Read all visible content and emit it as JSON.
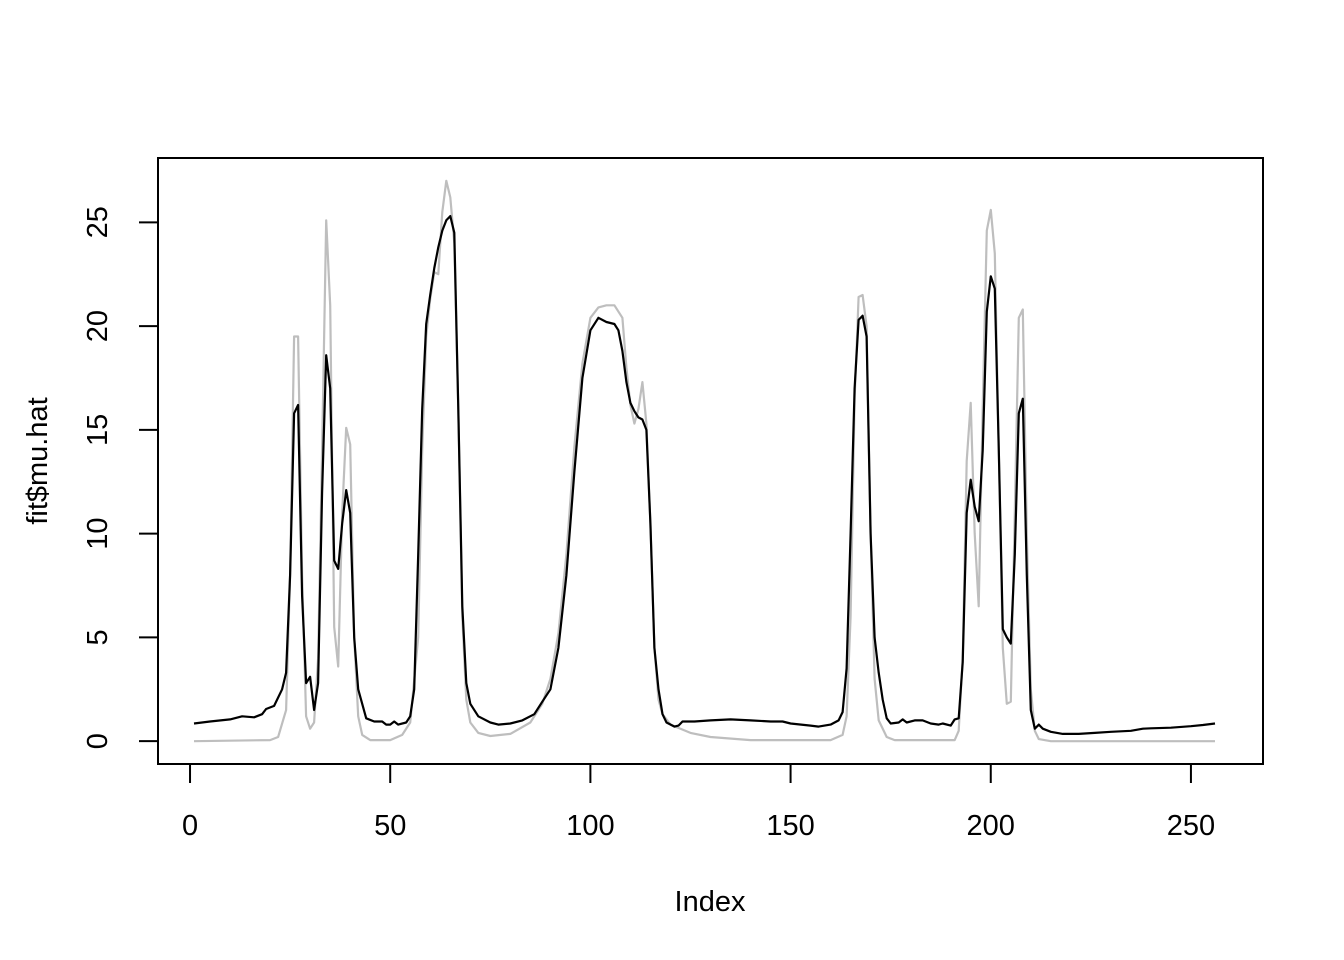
{
  "chart_data": {
    "type": "line",
    "title": "",
    "xlabel": "Index",
    "ylabel": "fit$mu.hat",
    "xlim": [
      -8,
      268
    ],
    "ylim": [
      -1.1,
      28.1
    ],
    "x_ticks": [
      0,
      50,
      100,
      150,
      200,
      250
    ],
    "y_ticks": [
      0,
      5,
      10,
      15,
      20,
      25
    ],
    "x_tick_labels": [
      "0",
      "50",
      "100",
      "150",
      "200",
      "250"
    ],
    "y_tick_labels": [
      "0",
      "5",
      "10",
      "15",
      "20",
      "25"
    ],
    "grid": false,
    "series": [
      {
        "role": "true-mean",
        "color": "#bebebe",
        "points": [
          [
            1,
            0
          ],
          [
            20,
            0.05
          ],
          [
            22,
            0.2
          ],
          [
            24,
            1.5
          ],
          [
            25,
            8
          ],
          [
            26,
            19.5
          ],
          [
            27,
            19.5
          ],
          [
            28,
            8
          ],
          [
            29,
            1.2
          ],
          [
            30,
            0.6
          ],
          [
            31,
            0.9
          ],
          [
            32,
            4
          ],
          [
            33,
            14
          ],
          [
            34,
            25.1
          ],
          [
            35,
            21
          ],
          [
            36,
            5.5
          ],
          [
            37,
            3.6
          ],
          [
            38,
            11
          ],
          [
            39,
            15.1
          ],
          [
            40,
            14.3
          ],
          [
            41,
            5
          ],
          [
            42,
            1.2
          ],
          [
            43,
            0.3
          ],
          [
            45,
            0.05
          ],
          [
            50,
            0.05
          ],
          [
            53,
            0.3
          ],
          [
            55,
            0.9
          ],
          [
            57,
            5
          ],
          [
            58,
            14
          ],
          [
            59,
            19.5
          ],
          [
            60,
            21.3
          ],
          [
            61,
            22.6
          ],
          [
            62,
            22.5
          ],
          [
            63,
            25.5
          ],
          [
            64,
            27
          ],
          [
            65,
            26.2
          ],
          [
            66,
            24
          ],
          [
            67,
            16
          ],
          [
            68,
            6
          ],
          [
            69,
            2
          ],
          [
            70,
            0.9
          ],
          [
            72,
            0.4
          ],
          [
            75,
            0.25
          ],
          [
            80,
            0.35
          ],
          [
            85,
            0.9
          ],
          [
            88,
            1.8
          ],
          [
            90,
            3
          ],
          [
            92,
            5.2
          ],
          [
            94,
            9
          ],
          [
            96,
            14.2
          ],
          [
            98,
            18.2
          ],
          [
            100,
            20.4
          ],
          [
            102,
            20.9
          ],
          [
            104,
            21
          ],
          [
            106,
            21
          ],
          [
            108,
            20.4
          ],
          [
            109,
            18
          ],
          [
            110,
            16.2
          ],
          [
            111,
            15.3
          ],
          [
            112,
            16
          ],
          [
            113,
            17.3
          ],
          [
            114,
            15.3
          ],
          [
            115,
            10.5
          ],
          [
            116,
            4.5
          ],
          [
            117,
            2
          ],
          [
            118,
            1.3
          ],
          [
            120,
            0.8
          ],
          [
            125,
            0.4
          ],
          [
            130,
            0.2
          ],
          [
            140,
            0.05
          ],
          [
            160,
            0.05
          ],
          [
            163,
            0.3
          ],
          [
            164,
            1.2
          ],
          [
            165,
            6
          ],
          [
            166,
            16.5
          ],
          [
            167,
            21.4
          ],
          [
            168,
            21.5
          ],
          [
            169,
            20
          ],
          [
            170,
            10
          ],
          [
            171,
            3
          ],
          [
            172,
            1
          ],
          [
            174,
            0.2
          ],
          [
            176,
            0.05
          ],
          [
            191,
            0.05
          ],
          [
            192,
            0.5
          ],
          [
            193,
            4
          ],
          [
            194,
            13.5
          ],
          [
            195,
            16.3
          ],
          [
            196,
            10
          ],
          [
            197,
            6.5
          ],
          [
            198,
            16
          ],
          [
            199,
            24.6
          ],
          [
            200,
            25.6
          ],
          [
            201,
            23.5
          ],
          [
            202,
            14
          ],
          [
            203,
            4.5
          ],
          [
            204,
            1.8
          ],
          [
            205,
            1.9
          ],
          [
            206,
            11
          ],
          [
            207,
            20.4
          ],
          [
            208,
            20.8
          ],
          [
            209,
            10
          ],
          [
            210,
            2.5
          ],
          [
            211,
            0.5
          ],
          [
            212,
            0.1
          ],
          [
            215,
            0
          ],
          [
            256,
            0
          ]
        ]
      },
      {
        "role": "fit",
        "color": "#000000",
        "points": [
          [
            1,
            0.85
          ],
          [
            5,
            0.95
          ],
          [
            10,
            1.05
          ],
          [
            13,
            1.2
          ],
          [
            16,
            1.15
          ],
          [
            18,
            1.3
          ],
          [
            19,
            1.55
          ],
          [
            21,
            1.7
          ],
          [
            23,
            2.5
          ],
          [
            24,
            3.3
          ],
          [
            25,
            8
          ],
          [
            26,
            15.8
          ],
          [
            27,
            16.2
          ],
          [
            28,
            7
          ],
          [
            29,
            2.8
          ],
          [
            30,
            3.1
          ],
          [
            31,
            1.5
          ],
          [
            32,
            2.8
          ],
          [
            33,
            12
          ],
          [
            34,
            18.6
          ],
          [
            35,
            17
          ],
          [
            36,
            8.7
          ],
          [
            37,
            8.3
          ],
          [
            38,
            10.5
          ],
          [
            39,
            12.1
          ],
          [
            40,
            11
          ],
          [
            41,
            5
          ],
          [
            42,
            2.5
          ],
          [
            43,
            1.8
          ],
          [
            44,
            1.1
          ],
          [
            46,
            0.95
          ],
          [
            48,
            0.95
          ],
          [
            49,
            0.8
          ],
          [
            50,
            0.8
          ],
          [
            51,
            0.95
          ],
          [
            52,
            0.8
          ],
          [
            54,
            0.9
          ],
          [
            55,
            1.2
          ],
          [
            56,
            2.5
          ],
          [
            57,
            9
          ],
          [
            58,
            16
          ],
          [
            59,
            20.1
          ],
          [
            60,
            21.5
          ],
          [
            61,
            22.8
          ],
          [
            62,
            23.8
          ],
          [
            63,
            24.6
          ],
          [
            64,
            25.1
          ],
          [
            65,
            25.3
          ],
          [
            66,
            24.5
          ],
          [
            67,
            16
          ],
          [
            68,
            6.5
          ],
          [
            69,
            2.8
          ],
          [
            70,
            1.8
          ],
          [
            72,
            1.2
          ],
          [
            75,
            0.9
          ],
          [
            77,
            0.8
          ],
          [
            80,
            0.85
          ],
          [
            83,
            1.0
          ],
          [
            86,
            1.3
          ],
          [
            88,
            1.9
          ],
          [
            90,
            2.5
          ],
          [
            92,
            4.5
          ],
          [
            94,
            8
          ],
          [
            96,
            13
          ],
          [
            98,
            17.5
          ],
          [
            100,
            19.8
          ],
          [
            102,
            20.4
          ],
          [
            104,
            20.2
          ],
          [
            106,
            20.1
          ],
          [
            107,
            19.8
          ],
          [
            108,
            18.8
          ],
          [
            109,
            17.3
          ],
          [
            110,
            16.3
          ],
          [
            111,
            15.9
          ],
          [
            112,
            15.6
          ],
          [
            113,
            15.5
          ],
          [
            114,
            15
          ],
          [
            115,
            10.5
          ],
          [
            116,
            4.5
          ],
          [
            117,
            2.5
          ],
          [
            118,
            1.3
          ],
          [
            119,
            0.9
          ],
          [
            121,
            0.7
          ],
          [
            122,
            0.75
          ],
          [
            123,
            0.95
          ],
          [
            126,
            0.95
          ],
          [
            130,
            1.0
          ],
          [
            135,
            1.05
          ],
          [
            140,
            1.0
          ],
          [
            145,
            0.95
          ],
          [
            148,
            0.95
          ],
          [
            150,
            0.85
          ],
          [
            155,
            0.75
          ],
          [
            157,
            0.7
          ],
          [
            160,
            0.8
          ],
          [
            162,
            1.0
          ],
          [
            163,
            1.4
          ],
          [
            164,
            3.5
          ],
          [
            165,
            10
          ],
          [
            166,
            17
          ],
          [
            167,
            20.3
          ],
          [
            168,
            20.5
          ],
          [
            169,
            19.5
          ],
          [
            170,
            10
          ],
          [
            171,
            5
          ],
          [
            172,
            3.3
          ],
          [
            173,
            2
          ],
          [
            174,
            1.1
          ],
          [
            175,
            0.85
          ],
          [
            177,
            0.9
          ],
          [
            178,
            1.05
          ],
          [
            179,
            0.9
          ],
          [
            181,
            1.0
          ],
          [
            183,
            1.0
          ],
          [
            185,
            0.85
          ],
          [
            187,
            0.8
          ],
          [
            188,
            0.85
          ],
          [
            190,
            0.75
          ],
          [
            191,
            1.05
          ],
          [
            192,
            1.1
          ],
          [
            193,
            3.8
          ],
          [
            194,
            11
          ],
          [
            195,
            12.6
          ],
          [
            196,
            11.3
          ],
          [
            197,
            10.6
          ],
          [
            198,
            14
          ],
          [
            199,
            20.7
          ],
          [
            200,
            22.4
          ],
          [
            201,
            21.8
          ],
          [
            202,
            14
          ],
          [
            203,
            5.4
          ],
          [
            204,
            5
          ],
          [
            205,
            4.7
          ],
          [
            206,
            9
          ],
          [
            207,
            15.8
          ],
          [
            208,
            16.5
          ],
          [
            209,
            8
          ],
          [
            210,
            1.5
          ],
          [
            211,
            0.6
          ],
          [
            212,
            0.8
          ],
          [
            213,
            0.6
          ],
          [
            215,
            0.45
          ],
          [
            218,
            0.35
          ],
          [
            222,
            0.35
          ],
          [
            226,
            0.4
          ],
          [
            230,
            0.45
          ],
          [
            235,
            0.5
          ],
          [
            238,
            0.6
          ],
          [
            240,
            0.62
          ],
          [
            245,
            0.65
          ],
          [
            250,
            0.72
          ],
          [
            253,
            0.78
          ],
          [
            256,
            0.85
          ]
        ]
      }
    ]
  }
}
